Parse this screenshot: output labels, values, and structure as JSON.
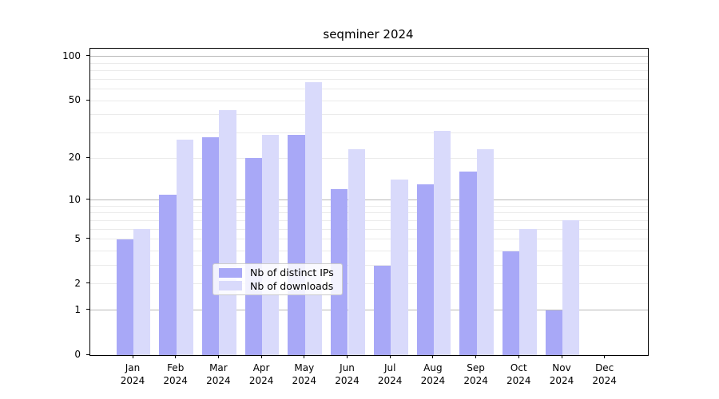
{
  "title": "seqminer 2024",
  "chart_data": {
    "type": "bar",
    "title": "seqminer 2024",
    "categories": [
      "Jan 2024",
      "Feb 2024",
      "Mar 2024",
      "Apr 2024",
      "May 2024",
      "Jun 2024",
      "Jul 2024",
      "Aug 2024",
      "Sep 2024",
      "Oct 2024",
      "Nov 2024",
      "Dec 2024"
    ],
    "x_months": [
      "Jan",
      "Feb",
      "Mar",
      "Apr",
      "May",
      "Jun",
      "Jul",
      "Aug",
      "Sep",
      "Oct",
      "Nov",
      "Dec"
    ],
    "x_year": "2024",
    "series": [
      {
        "name": "Nb of distinct IPs",
        "color": "#a8a8f7",
        "values": [
          5,
          11,
          28,
          20,
          29,
          12,
          3,
          13,
          16,
          4,
          1,
          0
        ]
      },
      {
        "name": "Nb of downloads",
        "color": "#d9dafb",
        "values": [
          6,
          27,
          43,
          29,
          67,
          23,
          14,
          31,
          23,
          6,
          7,
          0
        ]
      }
    ],
    "yscale": "log1p",
    "yticks": [
      0,
      1,
      2,
      5,
      10,
      20,
      50,
      100
    ],
    "ylim": [
      0,
      113
    ],
    "xlabel": "",
    "ylabel": "",
    "grid": {
      "major": [
        1,
        10,
        100
      ],
      "minor": [
        2,
        3,
        4,
        5,
        6,
        7,
        8,
        9,
        20,
        30,
        40,
        50,
        60,
        70,
        80,
        90
      ]
    },
    "legend": {
      "location": "lower center inside",
      "entries": [
        "Nb of distinct IPs",
        "Nb of downloads"
      ]
    },
    "colors": {
      "grid_major": "#b8b8b8",
      "grid_minor": "#ebebeb",
      "spine": "#000000",
      "background": "#ffffff"
    }
  }
}
